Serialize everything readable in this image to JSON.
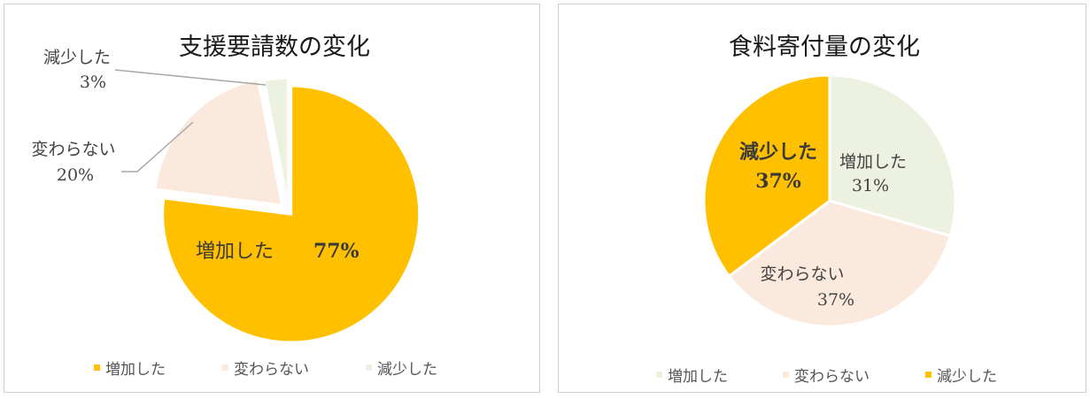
{
  "chart_data": [
    {
      "type": "pie",
      "title": "支援要請数の変化",
      "categories": [
        "増加した",
        "変わらない",
        "減少した"
      ],
      "values": [
        77,
        20,
        3
      ],
      "value_labels": [
        "77%",
        "20%",
        "3%"
      ],
      "colors": [
        "#FFC000",
        "#FCE9DE",
        "#EDF1E0"
      ],
      "legend": "bottom"
    },
    {
      "type": "pie",
      "title": "食料寄付量の変化",
      "categories": [
        "増加した",
        "変わらない",
        "減少した"
      ],
      "values": [
        31,
        37,
        37
      ],
      "value_labels": [
        "31%",
        "37%",
        "37%"
      ],
      "colors": [
        "#EDF1E0",
        "#FCE9DE",
        "#FFC000"
      ],
      "legend": "bottom"
    }
  ]
}
